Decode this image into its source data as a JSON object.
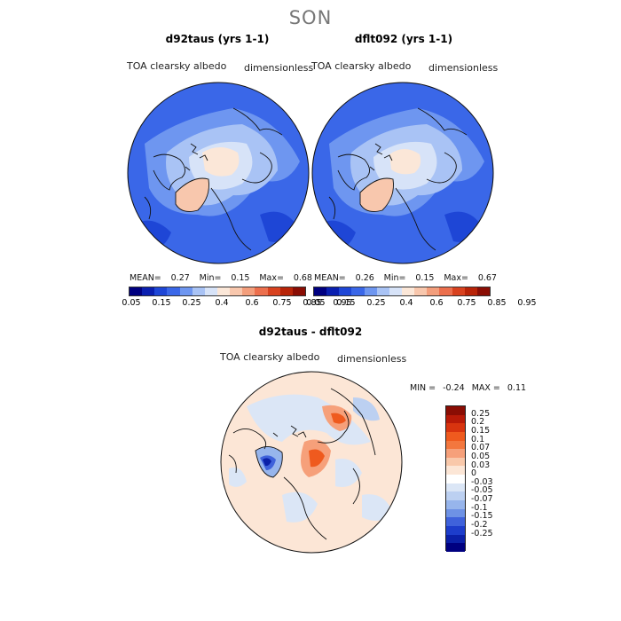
{
  "title": "SON",
  "panels": [
    {
      "title": "d92taus (yrs 1-1)",
      "variable": "TOA clearsky albedo",
      "units": "dimensionless",
      "stats": {
        "mean_label": "MEAN=",
        "mean": "0.27",
        "min_label": "Min=",
        "min": "0.15",
        "max_label": "Max=",
        "max": "0.68"
      }
    },
    {
      "title": "dflt092 (yrs 1-1)",
      "variable": "TOA clearsky albedo",
      "units": "dimensionless",
      "stats": {
        "mean_label": "MEAN=",
        "mean": "0.26",
        "min_label": "Min=",
        "min": "0.15",
        "max_label": "Max=",
        "max": "0.67"
      }
    }
  ],
  "colorbar_top": {
    "colors": [
      "#000080",
      "#0a1fb0",
      "#1e46d6",
      "#3a67e8",
      "#6e96f0",
      "#a9c3f5",
      "#d7e3f8",
      "#fbe7d8",
      "#f8c7ad",
      "#f39e7c",
      "#ec6f4d",
      "#d8421f",
      "#b82408",
      "#8a0d04"
    ],
    "labels": [
      "0.05",
      "0.15",
      "0.25",
      "0.4",
      "0.6",
      "0.75",
      "0.85",
      "0.95"
    ]
  },
  "difference": {
    "title": "d92taus - dflt092",
    "variable": "TOA clearsky albedo",
    "units": "dimensionless",
    "stats": {
      "min_label": "MIN =",
      "min": "-0.24",
      "max_label": "MAX =",
      "max": "0.11"
    },
    "colorbar": {
      "colors": [
        "#8a0d04",
        "#b81a08",
        "#d8340f",
        "#ef5a1e",
        "#f3773e",
        "#f6a07a",
        "#f9c8aa",
        "#fce6d6",
        "#ffffff",
        "#dbe6f6",
        "#bcd0f1",
        "#97b5ec",
        "#6e92e5",
        "#3f62db",
        "#1d3dcb",
        "#0b20a8",
        "#000080"
      ],
      "labels": [
        "0.25",
        "0.2",
        "0.15",
        "0.1",
        "0.07",
        "0.05",
        "0.03",
        "0",
        "-0.03",
        "-0.05",
        "-0.07",
        "-0.1",
        "-0.15",
        "-0.2",
        "-0.25"
      ]
    }
  }
}
